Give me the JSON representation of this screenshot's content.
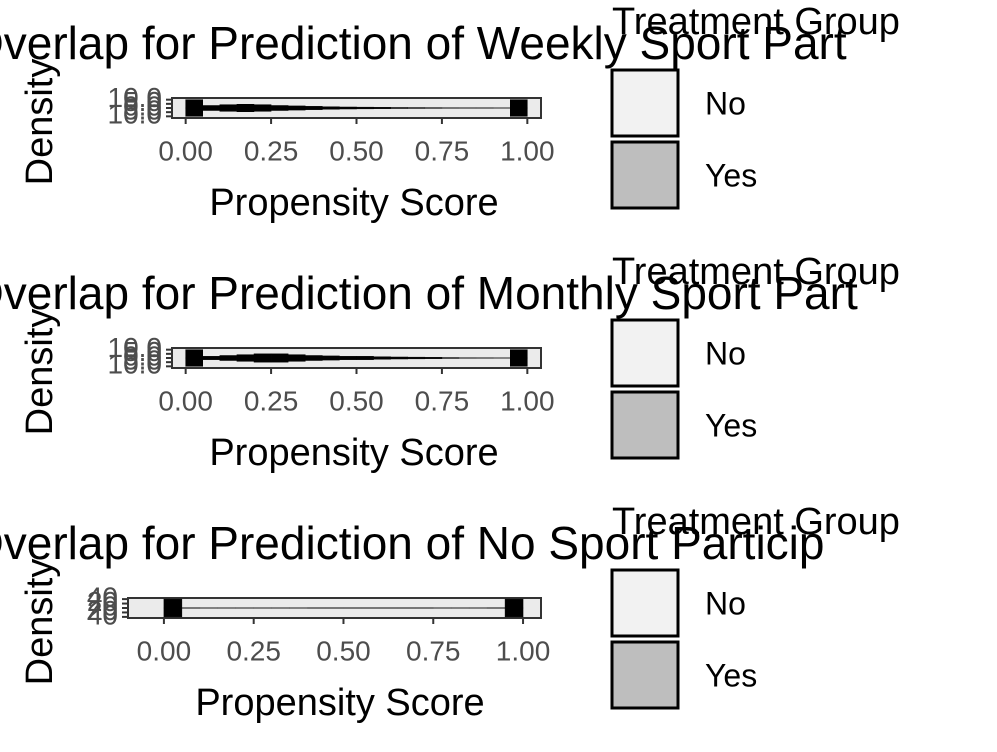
{
  "chart_data": [
    {
      "type": "histogram",
      "title": "Overlap for Prediction of Weekly Sport Part",
      "xlabel": "Propensity Score",
      "ylabel": "Density",
      "legend_title": "Treatment Group",
      "bins": [
        0,
        0.05,
        0.1,
        0.15,
        0.2,
        0.25,
        0.3,
        0.35,
        0.4,
        0.45,
        0.5,
        0.55,
        0.6,
        0.65,
        0.7,
        0.75,
        0.8,
        0.85,
        0.9,
        0.95,
        1
      ],
      "series": [
        {
          "name": "No",
          "color": "#f2f2f2",
          "values": [
            10,
            3,
            4,
            4.5,
            4,
            3,
            2.5,
            2,
            1.5,
            1.2,
            1,
            0.8,
            0.6,
            0.5,
            0.4,
            0.3,
            0.2,
            0.2,
            0.1,
            10
          ]
        },
        {
          "name": "Yes",
          "color": "#bebebe",
          "values": [
            -10,
            -3,
            -4,
            -4.5,
            -4,
            -3,
            -2.5,
            -2,
            -1.5,
            -1.2,
            -1,
            -0.8,
            -0.6,
            -0.5,
            -0.4,
            -0.3,
            -0.2,
            -0.2,
            -0.1,
            -10
          ]
        }
      ],
      "xlim": [
        -0.04,
        1.04
      ],
      "xticks": [
        {
          "value": 0,
          "label": "0.00"
        },
        {
          "value": 0.25,
          "label": "0.25"
        },
        {
          "value": 0.5,
          "label": "0.50"
        },
        {
          "value": 0.75,
          "label": "0.75"
        },
        {
          "value": 1,
          "label": "1.00"
        }
      ],
      "ylim": [
        -12,
        12
      ],
      "yticks": [
        {
          "value": -10,
          "label": "10.0"
        },
        {
          "value": -5,
          "label": "5.0"
        },
        {
          "value": 0,
          "label": "0.0"
        },
        {
          "value": 5,
          "label": "5.0"
        },
        {
          "value": 10,
          "label": "10.0"
        }
      ]
    },
    {
      "type": "histogram",
      "title": "Overlap for Prediction of Monthly Sport Part",
      "xlabel": "Propensity Score",
      "ylabel": "Density",
      "legend_title": "Treatment Group",
      "bins": [
        0,
        0.05,
        0.1,
        0.15,
        0.2,
        0.25,
        0.3,
        0.35,
        0.4,
        0.45,
        0.5,
        0.55,
        0.6,
        0.65,
        0.7,
        0.75,
        0.8,
        0.85,
        0.9,
        0.95,
        1
      ],
      "series": [
        {
          "name": "No",
          "color": "#f2f2f2",
          "values": [
            10,
            2,
            3,
            4,
            5,
            5,
            4,
            3,
            2.5,
            2,
            2,
            1.5,
            1.2,
            1,
            0.8,
            0.5,
            0.3,
            0.2,
            0.1,
            10
          ]
        },
        {
          "name": "Yes",
          "color": "#bebebe",
          "values": [
            -10,
            -2,
            -3,
            -4,
            -5,
            -5,
            -4,
            -3,
            -2.5,
            -2,
            -2,
            -1.5,
            -1.2,
            -1,
            -0.8,
            -0.5,
            -0.3,
            -0.2,
            -0.1,
            -10
          ]
        }
      ],
      "xlim": [
        -0.04,
        1.04
      ],
      "xticks": [
        {
          "value": 0,
          "label": "0.00"
        },
        {
          "value": 0.25,
          "label": "0.25"
        },
        {
          "value": 0.5,
          "label": "0.50"
        },
        {
          "value": 0.75,
          "label": "0.75"
        },
        {
          "value": 1,
          "label": "1.00"
        }
      ],
      "ylim": [
        -12,
        12
      ],
      "yticks": [
        {
          "value": -10,
          "label": "10.0"
        },
        {
          "value": -5,
          "label": "5.0"
        },
        {
          "value": 0,
          "label": "0.0"
        },
        {
          "value": 5,
          "label": "5.0"
        },
        {
          "value": 10,
          "label": "10.0"
        }
      ]
    },
    {
      "type": "histogram",
      "title": "Overlap for Prediction of No Sport Particip",
      "xlabel": "Propensity Score",
      "ylabel": "Density",
      "legend_title": "Treatment Group",
      "bins": [
        0,
        0.05,
        0.1,
        0.15,
        0.2,
        0.25,
        0.3,
        0.35,
        0.4,
        0.45,
        0.5,
        0.55,
        0.6,
        0.65,
        0.7,
        0.75,
        0.8,
        0.85,
        0.9,
        0.95,
        1
      ],
      "series": [
        {
          "name": "No",
          "color": "#f2f2f2",
          "values": [
            40,
            1,
            0.5,
            0.5,
            0.5,
            0.5,
            0.5,
            0.5,
            1,
            1,
            1,
            1,
            1,
            1,
            1,
            0.5,
            0.5,
            0.5,
            1,
            40
          ]
        },
        {
          "name": "Yes",
          "color": "#bebebe",
          "values": [
            -40,
            -1,
            -0.5,
            -0.5,
            -0.5,
            -0.5,
            -0.5,
            -0.5,
            -1,
            -1,
            -1,
            -1,
            -1,
            -1,
            -1,
            -0.5,
            -0.5,
            -0.5,
            -1,
            -40
          ]
        }
      ],
      "xlim": [
        -0.1,
        1.05
      ],
      "xticks": [
        {
          "value": 0,
          "label": "0.00"
        },
        {
          "value": 0.25,
          "label": "0.25"
        },
        {
          "value": 0.5,
          "label": "0.50"
        },
        {
          "value": 0.75,
          "label": "0.75"
        },
        {
          "value": 1,
          "label": "1.00"
        }
      ],
      "ylim": [
        -45,
        45
      ],
      "yticks": [
        {
          "value": -40,
          "label": "40"
        },
        {
          "value": -20,
          "label": "20"
        },
        {
          "value": 0,
          "label": "0"
        },
        {
          "value": 20,
          "label": "20"
        },
        {
          "value": 40,
          "label": "40"
        }
      ]
    }
  ]
}
